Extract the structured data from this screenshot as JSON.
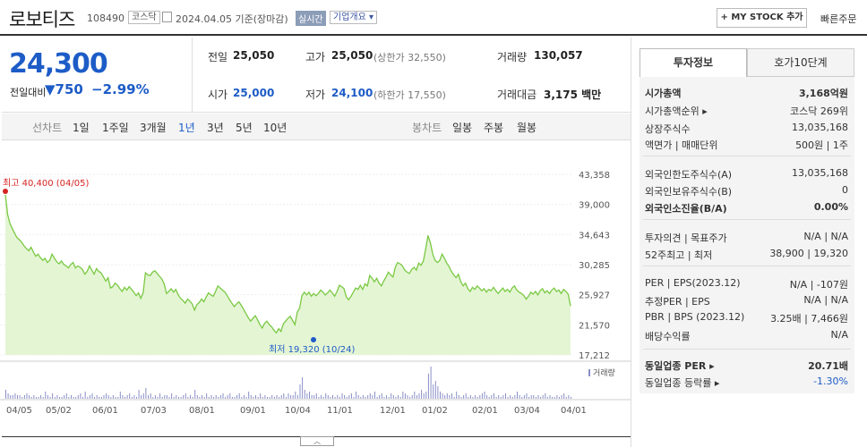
{
  "header": {
    "title": "로보티즈",
    "code": "108490",
    "market": "코스닥",
    "date": "2024.04.05  기준(장마감)",
    "realtime": "실시간",
    "company_info": "기업개요",
    "mystock": "+ MY STOCK 추가",
    "quick_order": "빠른주문"
  },
  "price": {
    "current": "24,300",
    "change_label": "전일대비",
    "change_amount": "▼750",
    "change_rate": "−2.99%",
    "prev_close_label": "전일",
    "prev_close": "25,050",
    "high_label": "고가",
    "high": "25,050",
    "upper_limit": "(상한가 32,550)",
    "volume_label": "거래량",
    "volume": "130,057",
    "open_label": "시가",
    "open": "25,000",
    "low_label": "저가",
    "low": "24,100",
    "lower_limit": "(하한가 17,550)",
    "amount_label": "거래대금",
    "amount": "3,175 백만"
  },
  "ranges": {
    "line_label": "선차트",
    "items": [
      "1일",
      "1주일",
      "3개월",
      "1년",
      "3년",
      "5년",
      "10년"
    ],
    "active": "1년",
    "candle_label": "봉차트",
    "candle_items": [
      "일봉",
      "주봉",
      "월봉"
    ]
  },
  "chart_data": {
    "type": "area",
    "y_ticks": [
      "43,358",
      "39,000",
      "34,643",
      "30,285",
      "25,927",
      "21,570",
      "17,212"
    ],
    "ylim": [
      17212,
      43358
    ],
    "x_ticks": [
      "04/05",
      "05/02",
      "06/01",
      "07/03",
      "08/01",
      "09/01",
      "10/04",
      "11/01",
      "12/01",
      "01/02",
      "02/01",
      "03/04",
      "04/01"
    ],
    "high_annotation": "최고 40,400 (04/05)",
    "low_annotation": "최저 19,320 (10/24)",
    "volume_label": "거래량",
    "series": [
      {
        "values": [
          40400,
          37500,
          36200,
          35500,
          34800,
          34200,
          33900,
          33500,
          33000,
          32600,
          32300,
          32800,
          32100,
          31500,
          31800,
          31300,
          30900,
          31200,
          30600,
          30900,
          31800,
          31200,
          30700,
          30400,
          30800,
          30300,
          30100,
          29800,
          30300,
          30600,
          29800,
          30100,
          29900,
          29600,
          28900,
          29300,
          30100,
          29500,
          28900,
          29700,
          29300,
          29100,
          28500,
          27900,
          28400,
          26900,
          27100,
          27600,
          27300,
          26800,
          26400,
          27000,
          26600,
          27100,
          26700,
          26300,
          25800,
          26200,
          25400,
          26200,
          29100,
          28800,
          28700,
          29200,
          29400,
          29000,
          28600,
          28200,
          27500,
          26100,
          26400,
          26800,
          26300,
          26700,
          25900,
          25400,
          25100,
          24700,
          25300,
          25000,
          24600,
          23700,
          24500,
          24800,
          25300,
          24900,
          25600,
          26200,
          25900,
          25700,
          26400,
          27200,
          26900,
          26600,
          26300,
          25800,
          25200,
          24700,
          24200,
          24600,
          24900,
          24400,
          23800,
          23200,
          22600,
          22100,
          22500,
          22900,
          22300,
          21600,
          21100,
          21800,
          22100,
          21600,
          21300,
          20800,
          20400,
          21000,
          20600,
          21700,
          22100,
          22500,
          22800,
          22200,
          21600,
          23400,
          24000,
          25800,
          26300,
          25900,
          26300,
          25700,
          26100,
          25800,
          26100,
          26600,
          26300,
          25900,
          26200,
          26600,
          26200,
          25700,
          26400,
          27300,
          27100,
          26800,
          25600,
          25200,
          25700,
          26300,
          26900,
          26700,
          27300,
          26700,
          27500,
          27200,
          28700,
          28300,
          27800,
          28300,
          27600,
          27200,
          27900,
          28500,
          29200,
          28800,
          28500,
          29900,
          30600,
          30400,
          30100,
          29500,
          29200,
          29000,
          29600,
          29900,
          29500,
          30500,
          30200,
          30800,
          32600,
          34500,
          33400,
          31800,
          30900,
          30600,
          30900,
          31800,
          31200,
          30500,
          30000,
          29300,
          28800,
          28400,
          28900,
          27800,
          27200,
          27600,
          26800,
          26400,
          27000,
          26700,
          27200,
          26900,
          26500,
          26800,
          26300,
          26700,
          26500,
          27000,
          26500,
          26100,
          26500,
          26900,
          26400,
          26700,
          26300,
          26900,
          27200,
          26600,
          26300,
          26100,
          25800,
          25300,
          25700,
          26300,
          26000,
          26400,
          25900,
          26500,
          26800,
          26200,
          26500,
          26100,
          26600,
          26900,
          26400,
          26600,
          26100,
          26700,
          26400,
          26000,
          24300
        ]
      }
    ],
    "volumes": [
      5,
      3,
      2,
      2,
      3,
      2,
      2,
      1,
      2,
      3,
      2,
      1,
      2,
      1,
      1,
      2,
      1,
      4,
      2,
      1,
      3,
      1,
      2,
      1,
      1,
      2,
      3,
      1,
      2,
      1,
      1,
      2,
      3,
      1,
      4,
      1,
      2,
      3,
      1,
      2,
      1,
      1,
      2,
      3,
      2,
      1,
      2,
      1,
      1,
      4,
      2,
      1,
      2,
      3,
      1,
      2,
      1,
      5,
      2,
      3,
      6,
      2,
      3,
      1,
      2,
      1,
      3,
      1,
      2,
      2,
      1,
      3,
      1,
      2,
      1,
      1,
      2,
      3,
      1,
      2,
      1,
      5,
      2,
      1,
      2,
      1,
      3,
      1,
      2,
      1,
      2,
      1,
      2,
      3,
      1,
      2,
      3,
      1,
      1,
      2,
      3,
      1,
      2,
      1,
      4,
      2,
      1,
      2,
      1,
      3,
      1,
      2,
      1,
      1,
      2,
      1,
      2,
      1,
      2,
      3,
      1,
      3,
      2,
      2,
      4,
      2,
      8,
      12,
      5,
      3,
      4,
      2,
      2,
      3,
      1,
      2,
      1,
      3,
      2,
      1,
      2,
      1,
      2,
      1,
      3,
      2,
      1,
      2,
      3,
      1,
      4,
      2,
      1,
      2,
      1,
      2,
      3,
      2,
      4,
      1,
      2,
      3,
      1,
      2,
      1,
      3,
      2,
      1,
      2,
      1,
      4,
      3,
      2,
      1,
      2,
      4,
      2,
      3,
      5,
      3,
      4,
      14,
      18,
      8,
      10,
      7,
      4,
      3,
      2,
      3,
      2,
      3,
      1,
      4,
      2,
      1,
      2,
      3,
      1,
      2,
      1,
      2,
      1,
      2,
      3,
      4,
      2,
      1,
      2,
      3,
      1,
      2,
      1,
      2,
      3,
      1,
      2,
      1,
      2,
      4,
      2,
      1,
      2,
      3,
      1,
      2,
      2,
      1,
      2,
      1,
      2,
      3,
      1,
      2,
      1,
      1,
      2,
      1,
      2,
      3,
      1,
      2,
      1
    ]
  },
  "right_panel": {
    "tabs": [
      "투자정보",
      "호가10단계"
    ],
    "rows": [
      {
        "label": "시가총액",
        "value": "3,168억원",
        "bold": true
      },
      {
        "label": "시가총액순위 ▸",
        "value": "코스닥 269위"
      },
      {
        "label": "상장주식수",
        "value": "13,035,168"
      },
      {
        "label": "액면가 | 매매단위",
        "value": "500원 | 1주"
      },
      {
        "label": "외국인한도주식수(A)",
        "value": "13,035,168"
      },
      {
        "label": "외국인보유주식수(B)",
        "value": "0"
      },
      {
        "label": "외국인소진율(B/A)",
        "value": "0.00%",
        "bold": true
      },
      {
        "label": "투자의견 | 목표주가",
        "value": "N/A | N/A"
      },
      {
        "label": "52주최고 | 최저",
        "value": "38,900 | 19,320"
      },
      {
        "label": "PER | EPS(2023.12)",
        "value": "N/A | -107원"
      },
      {
        "label": "추정PER | EPS",
        "value": "N/A | N/A"
      },
      {
        "label": "PBR | BPS (2023.12)",
        "value": "3.25배 | 7,466원"
      },
      {
        "label": "배당수익률",
        "value": "N/A"
      },
      {
        "label": "동일업종 PER ▸",
        "value": "20.71배",
        "bold": true
      },
      {
        "label": "동일업종 등락률 ▸",
        "value": "-1.30%",
        "blue": true
      }
    ]
  },
  "colors": {
    "accent_blue": "#1d5cc7",
    "chart_line": "#7ac943",
    "chart_fill": "#e4f5d4",
    "high_red": "#d62323"
  }
}
